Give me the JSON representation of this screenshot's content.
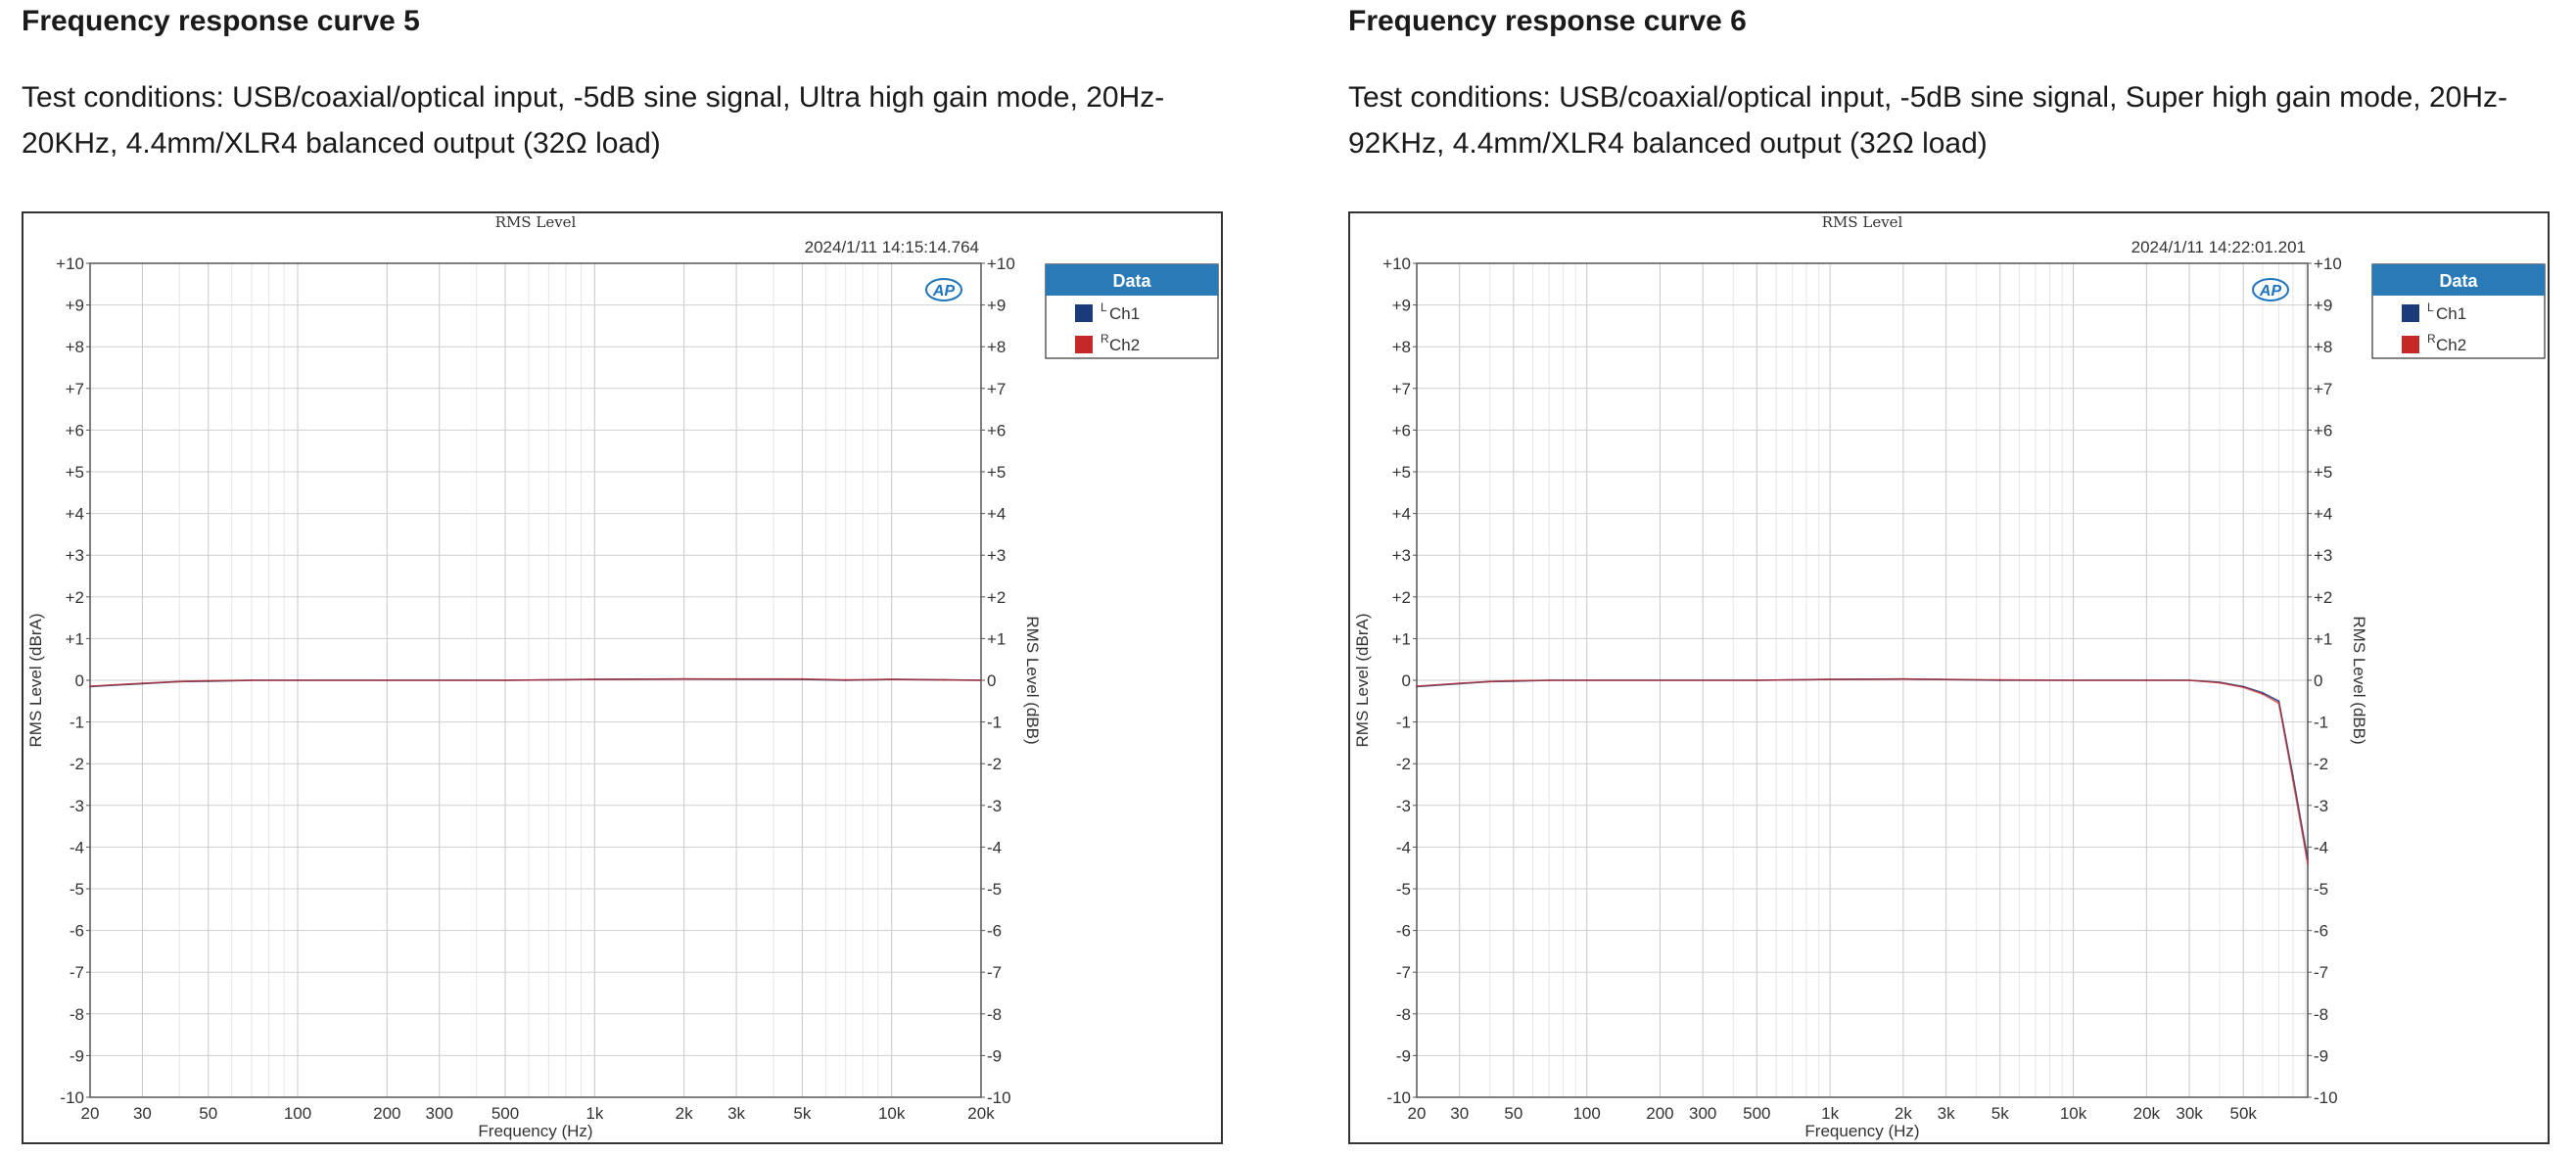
{
  "panels": [
    {
      "heading": "Frequency response curve 5",
      "conditions": "Test conditions: USB/coaxial/optical input, -5dB sine signal, Ultra high gain mode, 20Hz-20KHz, 4.4mm/XLR4 balanced output (32Ω load)",
      "chart": {
        "type": "line",
        "title": "RMS Level",
        "timestamp": "2024/1/11 14:15:14.764",
        "xlabel": "Frequency (Hz)",
        "ylabel_left": "RMS Level (dBrA)",
        "ylabel_right": "RMS Level (dBB)",
        "x_scale": "log",
        "xlim": [
          20,
          20000
        ],
        "ylim": [
          -10,
          10
        ],
        "x_ticks": [
          20,
          30,
          50,
          100,
          200,
          300,
          500,
          1000,
          2000,
          3000,
          5000,
          10000,
          20000
        ],
        "x_tick_labels": [
          "20",
          "30",
          "50",
          "100",
          "200",
          "300",
          "500",
          "1k",
          "2k",
          "3k",
          "5k",
          "10k",
          "20k"
        ],
        "y_ticks": [
          10,
          9,
          8,
          7,
          6,
          5,
          4,
          3,
          2,
          1,
          0,
          -1,
          -2,
          -3,
          -4,
          -5,
          -6,
          -7,
          -8,
          -9,
          -10
        ],
        "y_tick_labels": [
          "+10",
          "+9",
          "+8",
          "+7",
          "+6",
          "+5",
          "+4",
          "+3",
          "+2",
          "+1",
          "0",
          "-1",
          "-2",
          "-3",
          "-4",
          "-5",
          "-6",
          "-7",
          "-8",
          "-9",
          "-10"
        ],
        "grid": true,
        "legend": {
          "title": "Data",
          "placement": "right",
          "entries": [
            {
              "sup": "L",
              "name": "Ch1",
              "color": "#1a3a7a"
            },
            {
              "sup": "R",
              "name": "Ch2",
              "color": "#c62828"
            }
          ]
        },
        "series": [
          {
            "name": "Ch1",
            "color": "#2b3f7a",
            "x": [
              20,
              30,
              40,
              50,
              70,
              100,
              200,
              500,
              1000,
              2000,
              5000,
              7000,
              10000,
              15000,
              20000
            ],
            "y": [
              -0.15,
              -0.08,
              -0.03,
              -0.02,
              0.0,
              0.0,
              0.0,
              0.0,
              0.02,
              0.03,
              0.02,
              0.0,
              0.02,
              0.01,
              0.0
            ]
          },
          {
            "name": "Ch2",
            "color": "#c62828",
            "x": [
              20,
              30,
              40,
              50,
              70,
              100,
              200,
              500,
              1000,
              2000,
              5000,
              7000,
              10000,
              15000,
              20000
            ],
            "y": [
              -0.14,
              -0.07,
              -0.03,
              -0.01,
              0.0,
              0.0,
              0.0,
              0.0,
              0.02,
              0.03,
              0.03,
              0.01,
              0.02,
              0.01,
              0.0
            ]
          }
        ]
      }
    },
    {
      "heading": "Frequency response curve 6",
      "conditions": "Test conditions: USB/coaxial/optical input, -5dB sine signal, Super high gain mode, 20Hz-92KHz, 4.4mm/XLR4 balanced output (32Ω load)",
      "chart": {
        "type": "line",
        "title": "RMS Level",
        "timestamp": "2024/1/11 14:22:01.201",
        "xlabel": "Frequency (Hz)",
        "ylabel_left": "RMS Level (dBrA)",
        "ylabel_right": "RMS Level (dBB)",
        "x_scale": "log",
        "xlim": [
          20,
          92000
        ],
        "ylim": [
          -10,
          10
        ],
        "x_ticks": [
          20,
          30,
          50,
          100,
          200,
          300,
          500,
          1000,
          2000,
          3000,
          5000,
          10000,
          20000,
          30000,
          50000
        ],
        "x_tick_labels": [
          "20",
          "30",
          "50",
          "100",
          "200",
          "300",
          "500",
          "1k",
          "2k",
          "3k",
          "5k",
          "10k",
          "20k",
          "30k",
          "50k"
        ],
        "y_ticks": [
          10,
          9,
          8,
          7,
          6,
          5,
          4,
          3,
          2,
          1,
          0,
          -1,
          -2,
          -3,
          -4,
          -5,
          -6,
          -7,
          -8,
          -9,
          -10
        ],
        "y_tick_labels": [
          "+10",
          "+9",
          "+8",
          "+7",
          "+6",
          "+5",
          "+4",
          "+3",
          "+2",
          "+1",
          "0",
          "-1",
          "-2",
          "-3",
          "-4",
          "-5",
          "-6",
          "-7",
          "-8",
          "-9",
          "-10"
        ],
        "grid": true,
        "legend": {
          "title": "Data",
          "placement": "right",
          "entries": [
            {
              "sup": "L",
              "name": "Ch1",
              "color": "#1a3a7a"
            },
            {
              "sup": "R",
              "name": "Ch2",
              "color": "#c62828"
            }
          ]
        },
        "series": [
          {
            "name": "Ch1",
            "color": "#2b3f7a",
            "x": [
              20,
              30,
              40,
              50,
              70,
              100,
              500,
              1000,
              2000,
              5000,
              10000,
              20000,
              30000,
              40000,
              50000,
              60000,
              70000,
              80000,
              92000
            ],
            "y": [
              -0.15,
              -0.08,
              -0.03,
              -0.02,
              0.0,
              0.0,
              0.0,
              0.02,
              0.03,
              0.0,
              0.0,
              0.0,
              0.0,
              -0.05,
              -0.15,
              -0.3,
              -0.5,
              -2.3,
              -4.3
            ]
          },
          {
            "name": "Ch2",
            "color": "#c62828",
            "x": [
              20,
              30,
              40,
              50,
              70,
              100,
              500,
              1000,
              2000,
              5000,
              10000,
              20000,
              30000,
              40000,
              50000,
              60000,
              70000,
              80000,
              92000
            ],
            "y": [
              -0.14,
              -0.07,
              -0.03,
              -0.01,
              0.0,
              0.0,
              0.0,
              0.02,
              0.03,
              0.01,
              0.0,
              0.0,
              0.0,
              -0.06,
              -0.17,
              -0.33,
              -0.55,
              -2.4,
              -4.4
            ]
          }
        ]
      }
    }
  ]
}
